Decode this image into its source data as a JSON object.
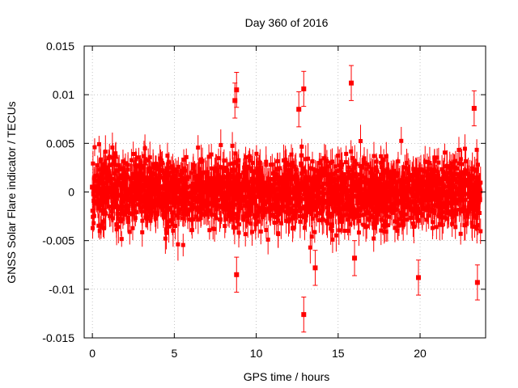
{
  "chart_data": {
    "type": "scatter",
    "title": "Day 360 of 2016",
    "xlabel": "GPS time / hours",
    "ylabel": "GNSS Solar Flare indicator / TECUs",
    "xlim": [
      -0.5,
      24.0
    ],
    "ylim": [
      -0.015,
      0.015
    ],
    "x_ticks": [
      0,
      5,
      10,
      15,
      20
    ],
    "x_tick_labels": [
      "0",
      "5",
      "10",
      "15",
      "20"
    ],
    "y_ticks": [
      -0.015,
      -0.01,
      -0.005,
      0,
      0.005,
      0.01,
      0.015
    ],
    "y_tick_labels": [
      "-0.015",
      "-0.01",
      "-0.005",
      "0",
      "0.005",
      "0.01",
      "0.015"
    ],
    "grid": true,
    "grid_style": "dotted",
    "series_color": "#ff0000",
    "marker": "square-with-error-bars",
    "series": [
      {
        "x": [
          0.0,
          0.5,
          1.0,
          1.5,
          2.0,
          2.5,
          3.0,
          3.5,
          4.0,
          4.5,
          5.0,
          5.5,
          6.0,
          6.5,
          7.0,
          7.5,
          8.0,
          8.5,
          9.0,
          9.5,
          10.0,
          10.5,
          11.0,
          11.5,
          12.0,
          12.5,
          13.0,
          13.5,
          14.0,
          14.5,
          15.0,
          15.5,
          16.0,
          16.5,
          17.0,
          17.5,
          18.0,
          18.5,
          19.0,
          19.5,
          20.0,
          20.5,
          21.0,
          21.5,
          22.0,
          22.5,
          23.0,
          23.5
        ],
        "y": [
          0.0005,
          -0.001,
          0.002,
          -0.0015,
          0.001,
          -0.0005,
          0.0015,
          -0.002,
          0.0005,
          0.001,
          -0.001,
          0.002,
          -0.0005,
          0.001,
          0.0,
          -0.001,
          0.0015,
          0.0,
          -0.0015,
          0.0005,
          0.001,
          -0.001,
          0.0005,
          0.0,
          -0.0005,
          0.001,
          0.0,
          -0.001,
          0.0005,
          0.001,
          -0.0005,
          0.0,
          0.001,
          -0.001,
          0.0005,
          0.0,
          -0.0005,
          0.001,
          -0.001,
          0.0,
          0.0005,
          -0.0015,
          0.001,
          0.0,
          -0.001,
          0.0005,
          -0.0005,
          0.0
        ],
        "y_error": 0.001
      }
    ],
    "highlighted_points": [
      {
        "x": 8.8,
        "y": 0.0105
      },
      {
        "x": 8.7,
        "y": 0.0094
      },
      {
        "x": 12.9,
        "y": 0.0106
      },
      {
        "x": 15.8,
        "y": 0.0112
      },
      {
        "x": 12.9,
        "y": -0.0126
      },
      {
        "x": 8.8,
        "y": -0.0085
      },
      {
        "x": 23.5,
        "y": -0.0093
      },
      {
        "x": 23.3,
        "y": 0.0086
      },
      {
        "x": 12.6,
        "y": 0.0085
      },
      {
        "x": 19.9,
        "y": -0.0088
      },
      {
        "x": 16.0,
        "y": -0.0068
      },
      {
        "x": 13.6,
        "y": -0.0078
      }
    ]
  }
}
